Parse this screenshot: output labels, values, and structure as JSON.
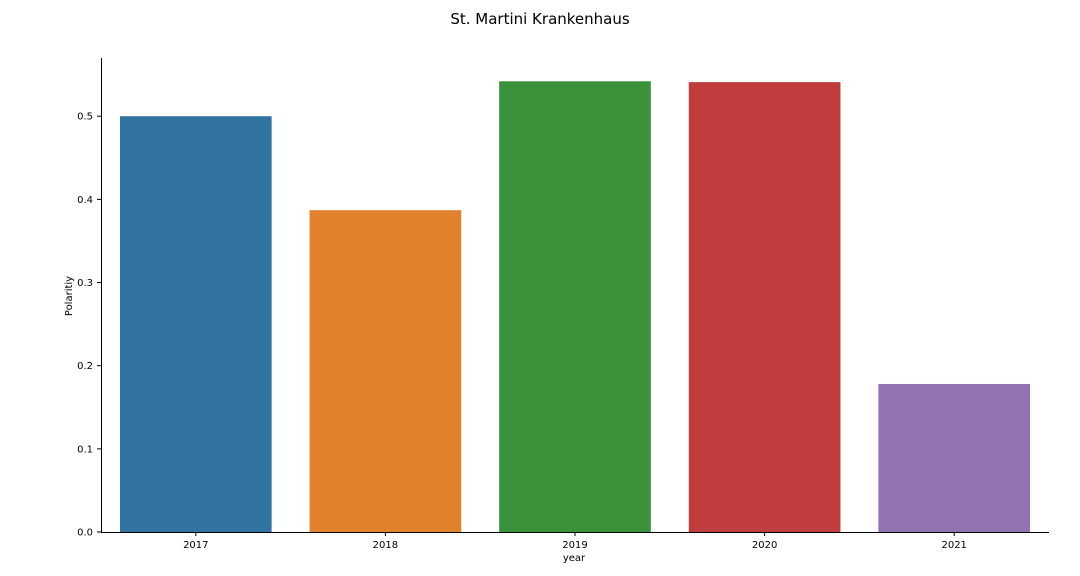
{
  "chart_data": {
    "type": "bar",
    "title": "St. Martini Krankenhaus",
    "xlabel": "year",
    "ylabel": "Polaritiy",
    "categories": [
      "2017",
      "2018",
      "2019",
      "2020",
      "2021"
    ],
    "values": [
      0.5,
      0.387,
      0.542,
      0.541,
      0.178
    ],
    "colors": [
      "#3274a1",
      "#e1812c",
      "#3a923a",
      "#c03d3e",
      "#9372b2"
    ],
    "ylim": [
      0,
      0.57
    ],
    "yticks": [
      0.0,
      0.1,
      0.2,
      0.3,
      0.4,
      0.5
    ],
    "ytick_labels": [
      "0.0",
      "0.1",
      "0.2",
      "0.3",
      "0.4",
      "0.5"
    ],
    "grid": false,
    "legend": "none"
  }
}
